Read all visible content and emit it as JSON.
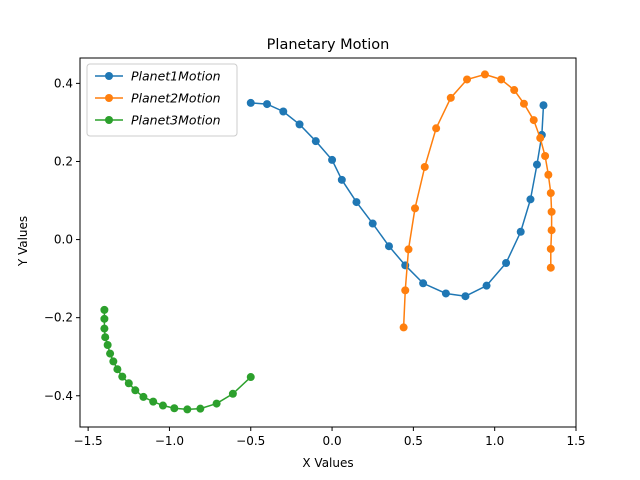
{
  "chart_data": {
    "type": "line",
    "title": "Planetary Motion",
    "xlabel": "X Values",
    "ylabel": "Y Values",
    "xlim": [
      -1.55,
      1.5
    ],
    "ylim": [
      -0.48,
      0.465
    ],
    "xticks": [
      -1.5,
      -1.0,
      -0.5,
      0.0,
      0.5,
      1.0,
      1.5
    ],
    "xtick_labels": [
      "−1.5",
      "−1.0",
      "−0.5",
      "0.0",
      "0.5",
      "1.0",
      "1.5"
    ],
    "yticks": [
      -0.4,
      -0.2,
      0.0,
      0.2,
      0.4
    ],
    "ytick_labels": [
      "−0.4",
      "−0.2",
      "0.0",
      "0.2",
      "0.4"
    ],
    "grid": false,
    "legend_position": "top-left",
    "markers": true,
    "series": [
      {
        "name": "Planet1Motion",
        "color": "#1f77b4",
        "x": [
          -0.5,
          -0.4,
          -0.3,
          -0.2,
          -0.1,
          0.0,
          0.06,
          0.15,
          0.25,
          0.35,
          0.45,
          0.56,
          0.7,
          0.82,
          0.95,
          1.07,
          1.16,
          1.22,
          1.26,
          1.29,
          1.3
        ],
        "y": [
          0.35,
          0.347,
          0.328,
          0.295,
          0.252,
          0.204,
          0.153,
          0.096,
          0.041,
          -0.017,
          -0.066,
          -0.112,
          -0.138,
          -0.145,
          -0.118,
          -0.06,
          0.02,
          0.103,
          0.192,
          0.268,
          0.344
        ]
      },
      {
        "name": "Planet2Motion",
        "color": "#ff7f0e",
        "x": [
          0.44,
          0.45,
          0.47,
          0.51,
          0.57,
          0.64,
          0.73,
          0.83,
          0.94,
          1.04,
          1.12,
          1.18,
          1.24,
          1.28,
          1.31,
          1.33,
          1.345,
          1.35,
          1.35,
          1.345,
          1.345
        ],
        "y": [
          -0.225,
          -0.13,
          -0.025,
          0.08,
          0.186,
          0.285,
          0.363,
          0.41,
          0.423,
          0.41,
          0.383,
          0.348,
          0.306,
          0.26,
          0.214,
          0.166,
          0.119,
          0.071,
          0.024,
          -0.024,
          -0.072
        ]
      },
      {
        "name": "Planet3Motion",
        "color": "#2ca02c",
        "x": [
          -0.5,
          -0.61,
          -0.71,
          -0.81,
          -0.89,
          -0.97,
          -1.04,
          -1.1,
          -1.16,
          -1.21,
          -1.25,
          -1.29,
          -1.32,
          -1.345,
          -1.365,
          -1.38,
          -1.395,
          -1.4,
          -1.4,
          -1.4
        ],
        "y": [
          -0.352,
          -0.395,
          -0.42,
          -0.433,
          -0.435,
          -0.432,
          -0.425,
          -0.415,
          -0.403,
          -0.386,
          -0.368,
          -0.351,
          -0.332,
          -0.312,
          -0.292,
          -0.27,
          -0.25,
          -0.228,
          -0.203,
          -0.18
        ]
      }
    ]
  }
}
